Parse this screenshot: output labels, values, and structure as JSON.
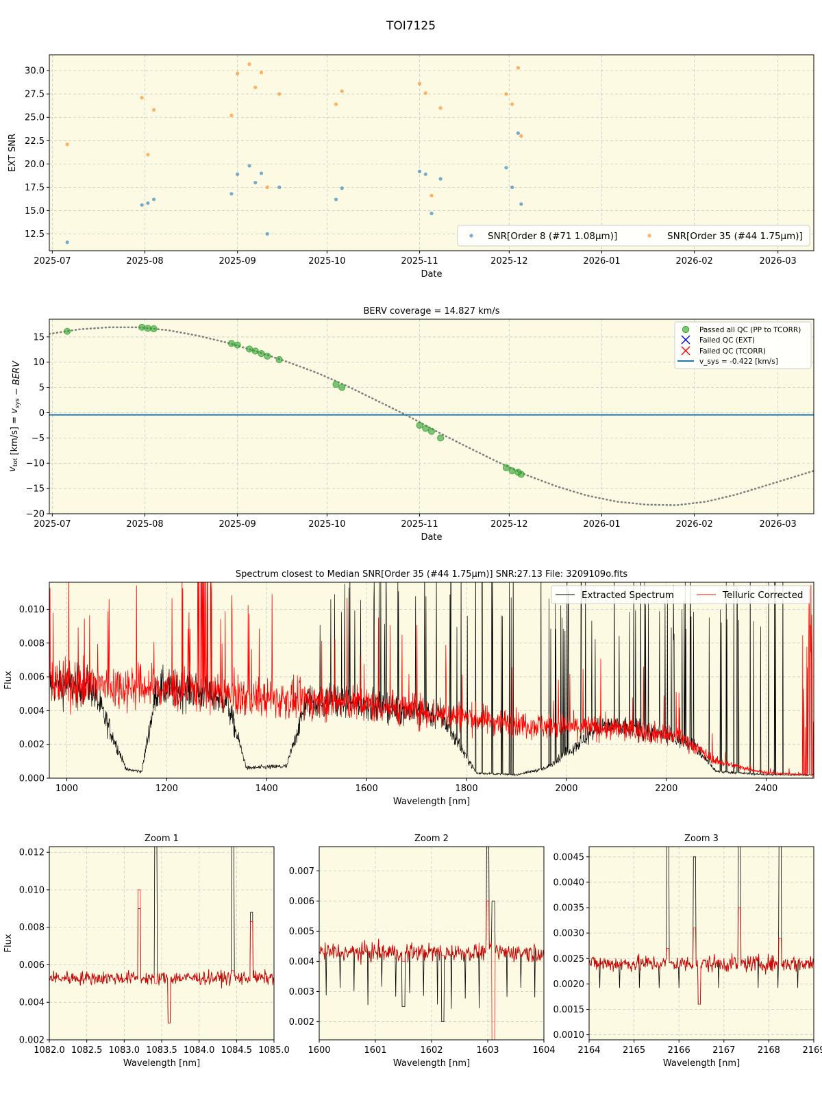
{
  "figure_title": "TOI7125",
  "colors": {
    "panel_bg": "#fcfae3",
    "grid": "#c8c8c8",
    "snr_order8": "#1f77b4",
    "snr_order35": "#ff7f0e",
    "passed_qc": "#2ca02c",
    "failed_ext": "#0000ff",
    "failed_tcorr": "#ff0000",
    "vsys_line": "#1f77b4",
    "berv_curve": "#808080",
    "extracted": "#000000",
    "telluric": "#ff0000"
  },
  "chart_data": [
    {
      "id": "snr",
      "type": "scatter",
      "title": "",
      "xlabel": "Date",
      "ylabel": "EXT SNR",
      "xlim": [
        "2025-06-30",
        "2026-03-13"
      ],
      "ylim": [
        10.7,
        31.7
      ],
      "xticks": [
        "2025-07",
        "2025-08",
        "2025-09",
        "2025-10",
        "2025-11",
        "2025-12",
        "2026-01",
        "2026-02",
        "2026-03"
      ],
      "yticks": [
        "12.5",
        "15.0",
        "17.5",
        "20.0",
        "22.5",
        "25.0",
        "27.5",
        "30.0"
      ],
      "grid": true,
      "legend_position": "lower-right",
      "series": [
        {
          "name": "SNR[Order 8 (#71 1.08μm)]",
          "color": "#1f77b4",
          "points": [
            [
              "2025-07-06",
              11.6
            ],
            [
              "2025-07-31",
              15.6
            ],
            [
              "2025-08-02",
              15.8
            ],
            [
              "2025-08-04",
              16.2
            ],
            [
              "2025-08-30",
              16.8
            ],
            [
              "2025-09-01",
              18.9
            ],
            [
              "2025-09-05",
              19.8
            ],
            [
              "2025-09-07",
              18.0
            ],
            [
              "2025-09-09",
              19.0
            ],
            [
              "2025-09-11",
              12.5
            ],
            [
              "2025-09-15",
              17.5
            ],
            [
              "2025-10-04",
              16.2
            ],
            [
              "2025-10-06",
              17.4
            ],
            [
              "2025-11-01",
              19.2
            ],
            [
              "2025-11-03",
              18.9
            ],
            [
              "2025-11-05",
              14.7
            ],
            [
              "2025-11-08",
              18.4
            ],
            [
              "2025-11-30",
              19.6
            ],
            [
              "2025-12-02",
              17.5
            ],
            [
              "2025-12-04",
              23.3
            ],
            [
              "2025-12-05",
              15.7
            ]
          ]
        },
        {
          "name": "SNR[Order 35 (#44 1.75μm)]",
          "color": "#ff7f0e",
          "points": [
            [
              "2025-07-06",
              22.1
            ],
            [
              "2025-07-31",
              27.1
            ],
            [
              "2025-08-02",
              21.0
            ],
            [
              "2025-08-04",
              25.8
            ],
            [
              "2025-08-30",
              25.2
            ],
            [
              "2025-09-01",
              29.7
            ],
            [
              "2025-09-05",
              30.7
            ],
            [
              "2025-09-07",
              28.2
            ],
            [
              "2025-09-09",
              29.8
            ],
            [
              "2025-09-11",
              17.5
            ],
            [
              "2025-09-15",
              27.5
            ],
            [
              "2025-10-04",
              26.4
            ],
            [
              "2025-10-06",
              27.8
            ],
            [
              "2025-11-01",
              28.6
            ],
            [
              "2025-11-03",
              27.6
            ],
            [
              "2025-11-05",
              16.6
            ],
            [
              "2025-11-08",
              26.0
            ],
            [
              "2025-11-30",
              27.5
            ],
            [
              "2025-12-02",
              26.4
            ],
            [
              "2025-12-04",
              30.3
            ],
            [
              "2025-12-05",
              23.0
            ]
          ]
        }
      ]
    },
    {
      "id": "berv",
      "type": "scatter",
      "title": "BERV coverage = 14.827 km/s",
      "xlabel": "Date",
      "ylabel": "v_tot [km/s] = v_sys − BERV",
      "xlim": [
        "2025-06-30",
        "2026-03-13"
      ],
      "ylim": [
        -20,
        18.5
      ],
      "xticks": [
        "2025-07",
        "2025-08",
        "2025-09",
        "2025-10",
        "2025-11",
        "2025-12",
        "2026-01",
        "2026-02",
        "2026-03"
      ],
      "yticks": [
        "−20",
        "−15",
        "−10",
        "−5",
        "0",
        "5",
        "10",
        "15"
      ],
      "grid": true,
      "legend_position": "top-right",
      "legend": [
        "Passed all QC (PP to TCORR)",
        "Failed QC (EXT)",
        "Failed QC (TCORR)",
        "v_sys = -0.422 [km/s]"
      ],
      "vsys": -0.422,
      "berv_curve": {
        "style": "dotted",
        "points": [
          [
            "2025-06-30",
            15.6
          ],
          [
            "2025-07-10",
            16.5
          ],
          [
            "2025-07-20",
            16.9
          ],
          [
            "2025-07-30",
            16.9
          ],
          [
            "2025-08-09",
            16.3
          ],
          [
            "2025-08-19",
            15.2
          ],
          [
            "2025-08-29",
            13.8
          ],
          [
            "2025-09-08",
            12.0
          ],
          [
            "2025-09-18",
            10.0
          ],
          [
            "2025-09-28",
            7.8
          ],
          [
            "2025-10-08",
            5.2
          ],
          [
            "2025-10-18",
            2.3
          ],
          [
            "2025-10-28",
            -0.6
          ],
          [
            "2025-11-07",
            -3.8
          ],
          [
            "2025-11-17",
            -6.8
          ],
          [
            "2025-11-27",
            -9.7
          ],
          [
            "2025-12-07",
            -12.4
          ],
          [
            "2025-12-17",
            -14.6
          ],
          [
            "2025-12-27",
            -16.4
          ],
          [
            "2026-01-06",
            -17.6
          ],
          [
            "2026-01-16",
            -18.2
          ],
          [
            "2026-01-26",
            -18.3
          ],
          [
            "2026-02-05",
            -17.6
          ],
          [
            "2026-02-15",
            -16.2
          ],
          [
            "2026-02-25",
            -14.4
          ],
          [
            "2026-03-07",
            -12.6
          ],
          [
            "2026-03-13",
            -11.5
          ]
        ]
      },
      "passed": [
        [
          "2025-07-06",
          16.1
        ],
        [
          "2025-07-31",
          16.9
        ],
        [
          "2025-08-02",
          16.7
        ],
        [
          "2025-08-04",
          16.6
        ],
        [
          "2025-08-30",
          13.7
        ],
        [
          "2025-09-01",
          13.4
        ],
        [
          "2025-09-05",
          12.6
        ],
        [
          "2025-09-07",
          12.2
        ],
        [
          "2025-09-09",
          11.7
        ],
        [
          "2025-09-11",
          11.2
        ],
        [
          "2025-09-15",
          10.5
        ],
        [
          "2025-10-04",
          5.6
        ],
        [
          "2025-10-06",
          5.0
        ],
        [
          "2025-11-01",
          -2.5
        ],
        [
          "2025-11-03",
          -3.1
        ],
        [
          "2025-11-05",
          -3.7
        ],
        [
          "2025-11-08",
          -5.0
        ],
        [
          "2025-11-30",
          -10.9
        ],
        [
          "2025-12-02",
          -11.5
        ],
        [
          "2025-12-04",
          -11.8
        ],
        [
          "2025-12-05",
          -12.2
        ]
      ]
    },
    {
      "id": "spectrum",
      "type": "line",
      "title": "Spectrum closest to Median SNR[Order 35 (#44 1.75μm)]     SNR:27.13     File: 3209109o.fits",
      "xlabel": "Wavelength [nm]",
      "ylabel": "Flux",
      "xlim": [
        965,
        2495
      ],
      "ylim": [
        0,
        0.0116
      ],
      "xticks": [
        "1000",
        "1200",
        "1400",
        "1600",
        "1800",
        "2000",
        "2200",
        "2400"
      ],
      "yticks": [
        "0.000",
        "0.002",
        "0.004",
        "0.006",
        "0.008",
        "0.010"
      ],
      "grid": true,
      "legend_position": "top-right",
      "series": [
        {
          "name": "Extracted Spectrum",
          "color": "#000000",
          "envelope": [
            [
              965,
              0.0056
            ],
            [
              1050,
              0.0054
            ],
            [
              1120,
              0.0005
            ],
            [
              1150,
              0.0004
            ],
            [
              1180,
              0.0053
            ],
            [
              1260,
              0.0052
            ],
            [
              1320,
              0.0046
            ],
            [
              1360,
              0.0006
            ],
            [
              1440,
              0.0007
            ],
            [
              1480,
              0.0046
            ],
            [
              1550,
              0.0045
            ],
            [
              1650,
              0.0042
            ],
            [
              1750,
              0.0037
            ],
            [
              1820,
              0.0003
            ],
            [
              1900,
              0.0002
            ],
            [
              1960,
              0.0006
            ],
            [
              2070,
              0.0031
            ],
            [
              2150,
              0.0029
            ],
            [
              2250,
              0.0021
            ],
            [
              2300,
              0.0004
            ],
            [
              2400,
              0.0002
            ],
            [
              2495,
              0.0002
            ]
          ]
        },
        {
          "name": "Telluric Corrected",
          "color": "#ff0000",
          "envelope": [
            [
              965,
              0.0056
            ],
            [
              1050,
              0.0055
            ],
            [
              1150,
              0.0054
            ],
            [
              1260,
              0.0052
            ],
            [
              1350,
              0.0048
            ],
            [
              1450,
              0.0046
            ],
            [
              1550,
              0.0045
            ],
            [
              1650,
              0.0042
            ],
            [
              1750,
              0.0038
            ],
            [
              1850,
              0.0034
            ],
            [
              1950,
              0.0031
            ],
            [
              2050,
              0.003
            ],
            [
              2150,
              0.0028
            ],
            [
              2230,
              0.0024
            ],
            [
              2300,
              0.001
            ],
            [
              2400,
              0.0003
            ],
            [
              2495,
              0.0002
            ]
          ]
        }
      ]
    },
    {
      "id": "zoom1",
      "type": "line",
      "title": "Zoom 1",
      "xlabel": "Wavelength [nm]",
      "ylabel": "Flux",
      "xlim": [
        1082.0,
        1085.0
      ],
      "ylim": [
        0.002,
        0.0123
      ],
      "xticks": [
        "1082.0",
        "1082.5",
        "1083.0",
        "1083.5",
        "1084.0",
        "1084.5",
        "1085.0"
      ],
      "yticks": [
        "0.002",
        "0.004",
        "0.006",
        "0.008",
        "0.010",
        "0.012"
      ],
      "grid": true,
      "baseline": 0.0053,
      "features": [
        {
          "x": 1083.2,
          "red": 0.01,
          "black": 0.009
        },
        {
          "x": 1083.42,
          "red": 0.005,
          "black": 0.0123
        },
        {
          "x": 1083.6,
          "red": 0.0029,
          "black": 0.0029
        },
        {
          "x": 1084.45,
          "red": 0.0057,
          "black": 0.0123
        },
        {
          "x": 1084.7,
          "red": 0.0083,
          "black": 0.0088
        }
      ]
    },
    {
      "id": "zoom2",
      "type": "line",
      "title": "Zoom 2",
      "xlabel": "Wavelength [nm]",
      "ylabel": "",
      "xlim": [
        1600,
        1604
      ],
      "ylim": [
        0.0014,
        0.0078
      ],
      "xticks": [
        "1600",
        "1601",
        "1602",
        "1603",
        "1604"
      ],
      "yticks": [
        "0.002",
        "0.003",
        "0.004",
        "0.005",
        "0.006",
        "0.007"
      ],
      "grid": true,
      "baseline": 0.0043,
      "features": [
        {
          "x": 1603.0,
          "red": 0.006,
          "black": 0.0078
        },
        {
          "x": 1603.1,
          "red": 0.0014,
          "black": 0.006
        },
        {
          "x": 1602.2,
          "red": 0.0042,
          "black": 0.002
        },
        {
          "x": 1601.5,
          "red": 0.004,
          "black": 0.0025
        }
      ]
    },
    {
      "id": "zoom3",
      "type": "line",
      "title": "Zoom 3",
      "xlabel": "Wavelength [nm]",
      "ylabel": "",
      "xlim": [
        2164,
        2169
      ],
      "ylim": [
        0.0009,
        0.0047
      ],
      "xticks": [
        "2164",
        "2165",
        "2166",
        "2167",
        "2168",
        "2169"
      ],
      "yticks": [
        "0.0010",
        "0.0015",
        "0.0020",
        "0.0025",
        "0.0030",
        "0.0035",
        "0.0040",
        "0.0045"
      ],
      "grid": true,
      "baseline": 0.0024,
      "features": [
        {
          "x": 2165.75,
          "red": 0.0027,
          "black": 0.0047
        },
        {
          "x": 2166.35,
          "red": 0.0031,
          "black": 0.0045
        },
        {
          "x": 2167.35,
          "red": 0.0035,
          "black": 0.0047
        },
        {
          "x": 2168.25,
          "red": 0.0029,
          "black": 0.0047
        },
        {
          "x": 2166.45,
          "red": 0.0016,
          "black": 0.0016
        }
      ]
    }
  ]
}
